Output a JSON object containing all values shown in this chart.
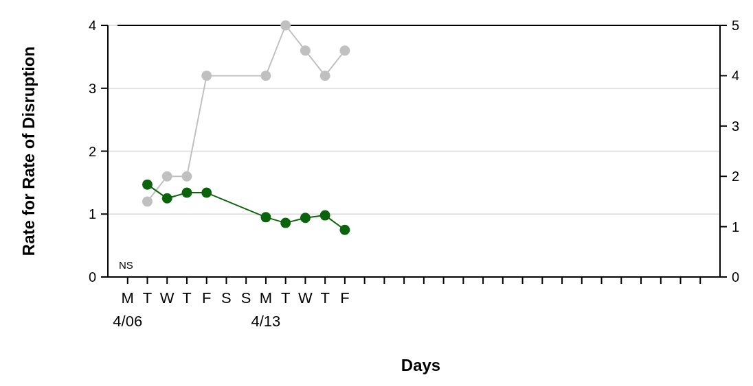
{
  "chart_data": {
    "type": "line",
    "xlabel": "Days",
    "ylabel": "Rate for Rate of Disruption",
    "categories": [
      "M\n4/06",
      "T",
      "W",
      "T",
      "F",
      "S",
      "S",
      "M\n4/13",
      "T",
      "W",
      "T",
      "F",
      null,
      null,
      null,
      null,
      null,
      null,
      null,
      null,
      null,
      null,
      null,
      null,
      null,
      null,
      null,
      null,
      null,
      null
    ],
    "series": [
      {
        "color": "#c0c0c0",
        "axis": "y2",
        "values": [
          null,
          1.5,
          2,
          2,
          4,
          null,
          null,
          4,
          5,
          4.5,
          4,
          4.5,
          null,
          null,
          null,
          null,
          null,
          null,
          null,
          null,
          null,
          null,
          null,
          null,
          null,
          null,
          null,
          null,
          null,
          null
        ]
      },
      {
        "color": "#0b640b",
        "values": [
          null,
          1.47,
          1.25,
          1.34,
          1.34,
          null,
          null,
          0.95,
          0.86,
          0.94,
          0.98,
          0.75,
          null,
          null,
          null,
          null,
          null,
          null,
          null,
          null,
          null,
          null,
          null,
          null,
          null,
          null,
          null,
          null,
          null,
          null
        ]
      }
    ],
    "ylim": [
      0,
      4
    ],
    "yticks": [
      0,
      1,
      2,
      3,
      4
    ],
    "y2lim": [
      0,
      5
    ],
    "y2ticks": [
      0,
      1,
      2,
      3,
      4,
      5
    ],
    "grid": "y",
    "marker": "circle",
    "line_style": "solid",
    "annotations": [
      "NS"
    ]
  }
}
